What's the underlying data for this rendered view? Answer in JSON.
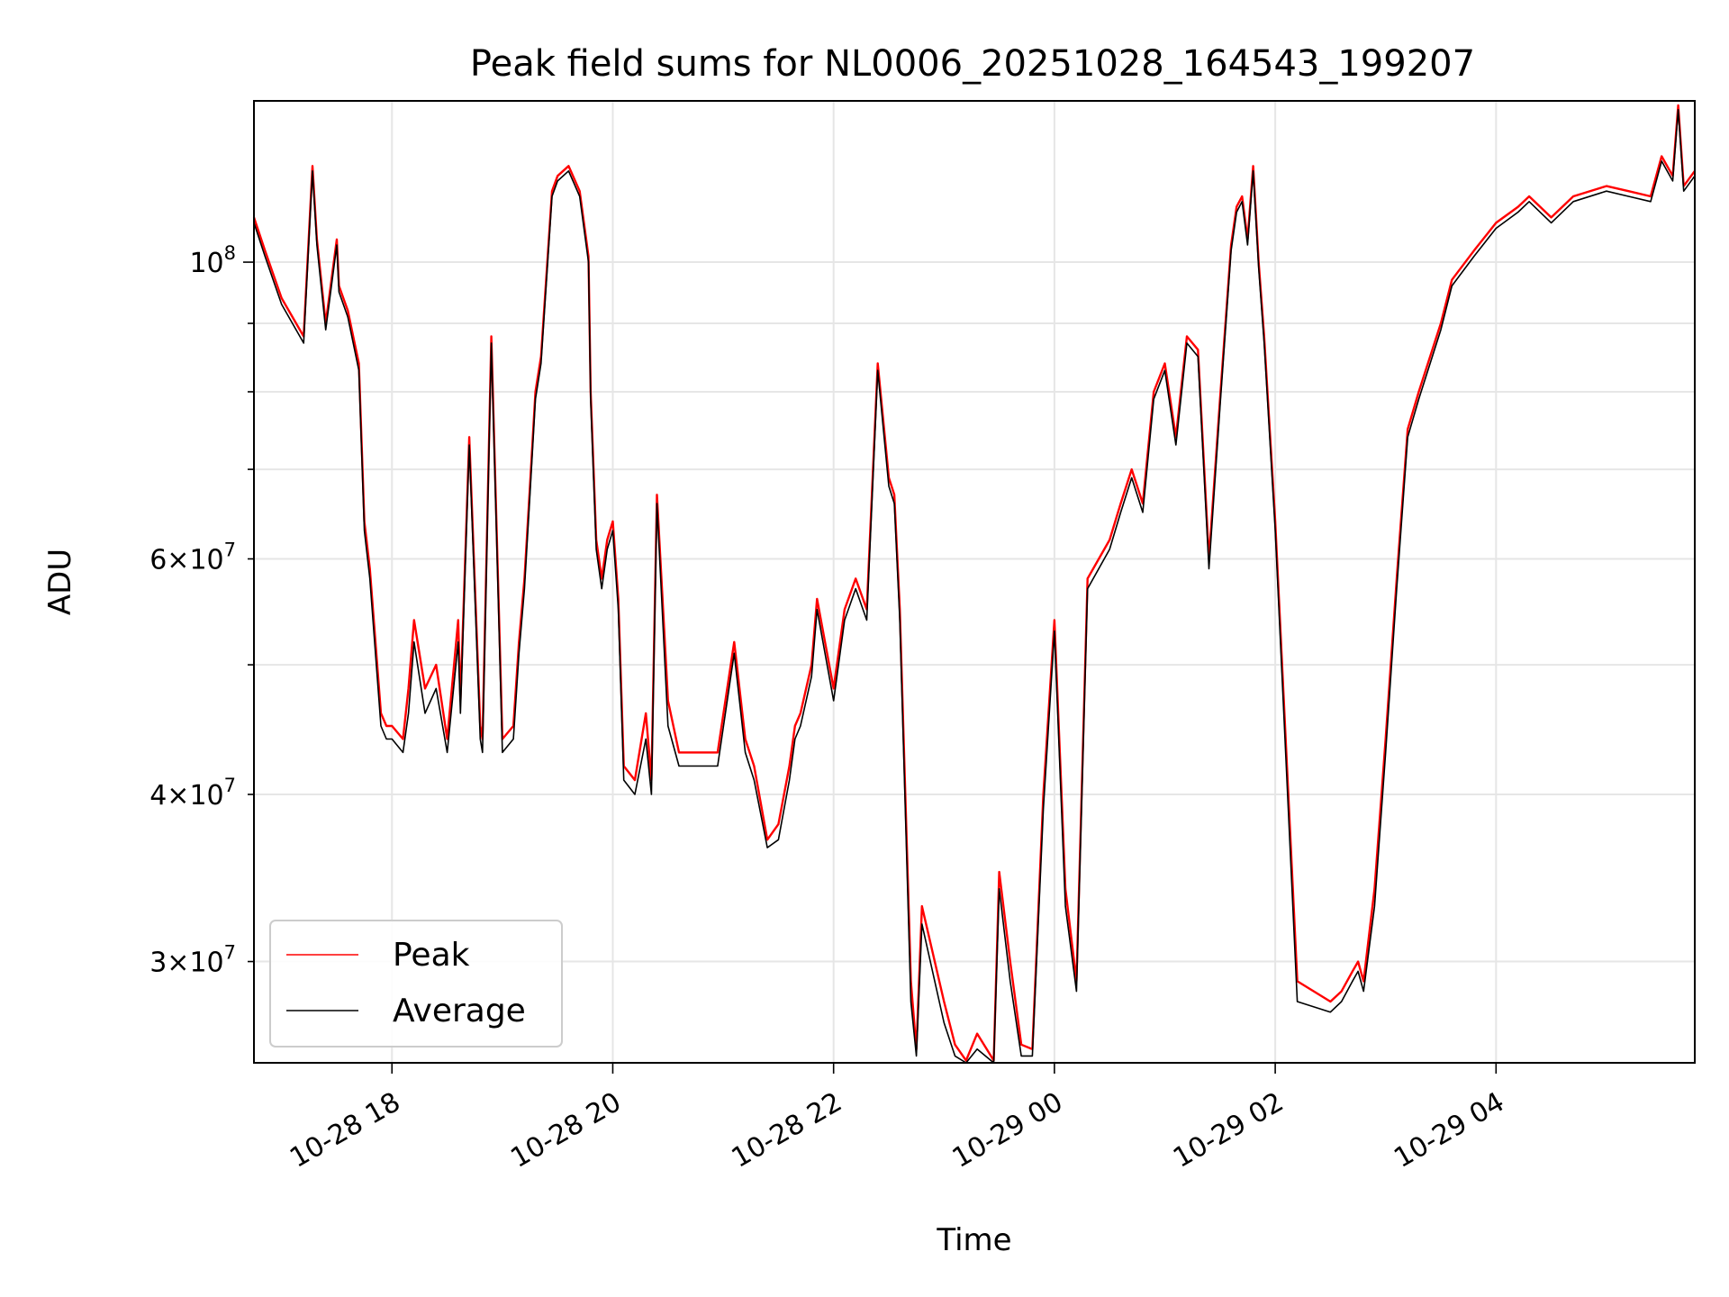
{
  "chart_data": {
    "type": "line",
    "title": "Peak field sums for NL0006_20251028_164543_199207",
    "xlabel": "Time",
    "ylabel": "ADU",
    "yscale": "log",
    "x_range_hours": [
      16.75,
      29.8
    ],
    "ylim": [
      25200000,
      132000000
    ],
    "x_ticks": [
      {
        "hours": 18,
        "label": "10-28 18"
      },
      {
        "hours": 20,
        "label": "10-28 20"
      },
      {
        "hours": 22,
        "label": "10-28 22"
      },
      {
        "hours": 24,
        "label": "10-29 00"
      },
      {
        "hours": 26,
        "label": "10-29 02"
      },
      {
        "hours": 28,
        "label": "10-29 04"
      }
    ],
    "y_major_ticks": [
      {
        "value": 100000000,
        "base": "10",
        "exp": "8"
      }
    ],
    "y_minor_ticks": [
      {
        "value": 30000000,
        "mant": "3",
        "base": "10",
        "exp": "7"
      },
      {
        "value": 40000000,
        "mant": "4",
        "base": "10",
        "exp": "7"
      },
      {
        "value": 60000000,
        "mant": "6",
        "base": "10",
        "exp": "7"
      },
      {
        "value": 50000000
      },
      {
        "value": 70000000
      },
      {
        "value": 80000000
      },
      {
        "value": 90000000
      }
    ],
    "grid": true,
    "legend_position": "lower-left",
    "series": [
      {
        "name": "Peak",
        "color": "#ff0000",
        "x_hours": [
          16.75,
          16.85,
          17.0,
          17.2,
          17.28,
          17.32,
          17.4,
          17.5,
          17.52,
          17.6,
          17.7,
          17.75,
          17.8,
          17.9,
          17.95,
          18.0,
          18.1,
          18.15,
          18.2,
          18.3,
          18.4,
          18.5,
          18.6,
          18.62,
          18.7,
          18.8,
          18.82,
          18.9,
          19.0,
          19.1,
          19.15,
          19.2,
          19.25,
          19.3,
          19.35,
          19.4,
          19.45,
          19.5,
          19.6,
          19.7,
          19.78,
          19.8,
          19.85,
          19.9,
          19.95,
          20.0,
          20.05,
          20.1,
          20.2,
          20.3,
          20.35,
          20.4,
          20.5,
          20.6,
          20.8,
          20.95,
          21.1,
          21.2,
          21.28,
          21.4,
          21.5,
          21.6,
          21.65,
          21.7,
          21.8,
          21.85,
          22.0,
          22.1,
          22.2,
          22.3,
          22.4,
          22.5,
          22.55,
          22.6,
          22.7,
          22.75,
          22.8,
          23.0,
          23.1,
          23.2,
          23.3,
          23.45,
          23.5,
          23.6,
          23.7,
          23.8,
          23.9,
          24.0,
          24.1,
          24.2,
          24.3,
          24.5,
          24.6,
          24.7,
          24.8,
          24.9,
          25.0,
          25.1,
          25.2,
          25.3,
          25.4,
          25.5,
          25.6,
          25.65,
          25.7,
          25.75,
          25.8,
          25.85,
          25.9,
          26.0,
          26.2,
          26.5,
          26.6,
          26.7,
          26.75,
          26.8,
          26.9,
          27.0,
          27.1,
          27.2,
          27.3,
          27.5,
          27.6,
          27.8,
          28.0,
          28.2,
          28.3,
          28.5,
          28.7,
          29.0,
          29.2,
          29.4,
          29.5,
          29.6,
          29.65,
          29.7,
          29.8
        ],
        "values": [
          108000000,
          102000000,
          94000000,
          88000000,
          118000000,
          104000000,
          90000000,
          104000000,
          96000000,
          92000000,
          84000000,
          64000000,
          59000000,
          46000000,
          45000000,
          45000000,
          44000000,
          48000000,
          54000000,
          48000000,
          50000000,
          44000000,
          54000000,
          47000000,
          74000000,
          45000000,
          44000000,
          88000000,
          44000000,
          45000000,
          52000000,
          58000000,
          68000000,
          80000000,
          85000000,
          98000000,
          113000000,
          116000000,
          118000000,
          113000000,
          101000000,
          80000000,
          62000000,
          58000000,
          62000000,
          64000000,
          56000000,
          42000000,
          41000000,
          46000000,
          41000000,
          67000000,
          47000000,
          43000000,
          43000000,
          43000000,
          52000000,
          44000000,
          42000000,
          37000000,
          38000000,
          42000000,
          45000000,
          46000000,
          50000000,
          56000000,
          48000000,
          55000000,
          58000000,
          55000000,
          84000000,
          69000000,
          67000000,
          55000000,
          29000000,
          25800000,
          33000000,
          28000000,
          26000000,
          25300000,
          26500000,
          25300000,
          35000000,
          30000000,
          26000000,
          25800000,
          40000000,
          54000000,
          34000000,
          29000000,
          58000000,
          62000000,
          66000000,
          70000000,
          66000000,
          80000000,
          84000000,
          74000000,
          88000000,
          86000000,
          60000000,
          79000000,
          103000000,
          110000000,
          112000000,
          104000000,
          118000000,
          100000000,
          88000000,
          64000000,
          29000000,
          28000000,
          28500000,
          29500000,
          30000000,
          29000000,
          34000000,
          44000000,
          58000000,
          75000000,
          80000000,
          90000000,
          97000000,
          102000000,
          107000000,
          110000000,
          112000000,
          108000000,
          112000000,
          114000000,
          113000000,
          112000000,
          120000000,
          116000000,
          131000000,
          114000000,
          117000000
        ]
      },
      {
        "name": "Average",
        "color": "#000000",
        "x_hours": [
          16.75,
          16.85,
          17.0,
          17.2,
          17.28,
          17.32,
          17.4,
          17.5,
          17.52,
          17.6,
          17.7,
          17.75,
          17.8,
          17.9,
          17.95,
          18.0,
          18.1,
          18.15,
          18.2,
          18.3,
          18.4,
          18.5,
          18.6,
          18.62,
          18.7,
          18.8,
          18.82,
          18.9,
          19.0,
          19.1,
          19.15,
          19.2,
          19.25,
          19.3,
          19.35,
          19.4,
          19.45,
          19.5,
          19.6,
          19.7,
          19.78,
          19.8,
          19.85,
          19.9,
          19.95,
          20.0,
          20.05,
          20.1,
          20.2,
          20.3,
          20.35,
          20.4,
          20.5,
          20.6,
          20.8,
          20.95,
          21.1,
          21.2,
          21.28,
          21.4,
          21.5,
          21.6,
          21.65,
          21.7,
          21.8,
          21.85,
          22.0,
          22.1,
          22.2,
          22.3,
          22.4,
          22.5,
          22.55,
          22.6,
          22.7,
          22.75,
          22.8,
          23.0,
          23.1,
          23.2,
          23.3,
          23.45,
          23.5,
          23.6,
          23.7,
          23.8,
          23.9,
          24.0,
          24.1,
          24.2,
          24.3,
          24.5,
          24.6,
          24.7,
          24.8,
          24.9,
          25.0,
          25.1,
          25.2,
          25.3,
          25.4,
          25.5,
          25.6,
          25.65,
          25.7,
          25.75,
          25.8,
          25.85,
          25.9,
          26.0,
          26.2,
          26.5,
          26.6,
          26.7,
          26.75,
          26.8,
          26.9,
          27.0,
          27.1,
          27.2,
          27.3,
          27.5,
          27.6,
          27.8,
          28.0,
          28.2,
          28.3,
          28.5,
          28.7,
          29.0,
          29.2,
          29.4,
          29.5,
          29.6,
          29.65,
          29.7,
          29.8
        ],
        "values": [
          107000000,
          101000000,
          93000000,
          87000000,
          117000000,
          103000000,
          89000000,
          103000000,
          95000000,
          91000000,
          83000000,
          63000000,
          58000000,
          45000000,
          44000000,
          44000000,
          43000000,
          46000000,
          52000000,
          46000000,
          48000000,
          43000000,
          52000000,
          46000000,
          73000000,
          44000000,
          43000000,
          87000000,
          43000000,
          44000000,
          51000000,
          57000000,
          67000000,
          79000000,
          84000000,
          97000000,
          112000000,
          115000000,
          117000000,
          112000000,
          100000000,
          79000000,
          61000000,
          57000000,
          61000000,
          63000000,
          55000000,
          41000000,
          40000000,
          44000000,
          40000000,
          66000000,
          45000000,
          42000000,
          42000000,
          42000000,
          51000000,
          43000000,
          41000000,
          36500000,
          37000000,
          41000000,
          44000000,
          45000000,
          49000000,
          55000000,
          47000000,
          54000000,
          57000000,
          54000000,
          83000000,
          68000000,
          66000000,
          54000000,
          28000000,
          25500000,
          32000000,
          27000000,
          25500000,
          25000000,
          25800000,
          25000000,
          34000000,
          29000000,
          25500000,
          25500000,
          39000000,
          53000000,
          33000000,
          28500000,
          57000000,
          61000000,
          65000000,
          69000000,
          65000000,
          79000000,
          83000000,
          73000000,
          87000000,
          85000000,
          59000000,
          78000000,
          102000000,
          109000000,
          111000000,
          103000000,
          117000000,
          99000000,
          87000000,
          63000000,
          28000000,
          27500000,
          28000000,
          29000000,
          29500000,
          28500000,
          33000000,
          43000000,
          57000000,
          74000000,
          79000000,
          89000000,
          96000000,
          101000000,
          106000000,
          109000000,
          111000000,
          107000000,
          111000000,
          113000000,
          112000000,
          111000000,
          119000000,
          115000000,
          130000000,
          113000000,
          116000000
        ]
      }
    ]
  }
}
